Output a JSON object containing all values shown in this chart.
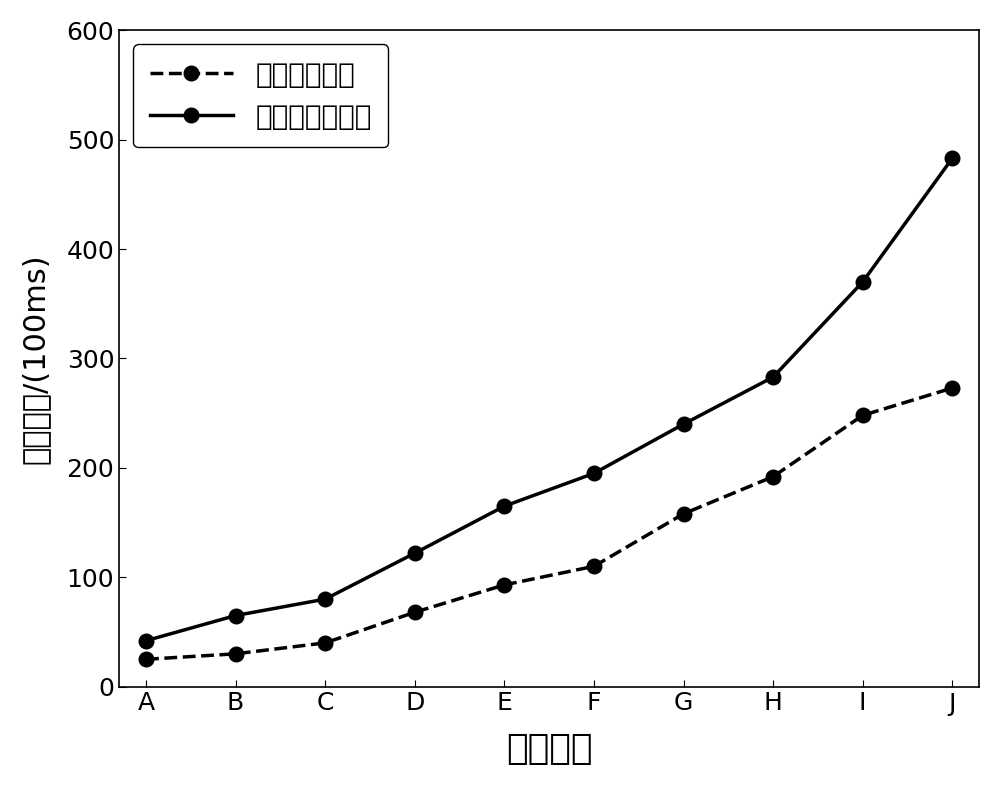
{
  "categories": [
    "A",
    "B",
    "C",
    "D",
    "E",
    "F",
    "G",
    "H",
    "I",
    "J"
  ],
  "heuristic_values": [
    42,
    65,
    80,
    122,
    165,
    195,
    240,
    283,
    370,
    483
  ],
  "general_values": [
    25,
    30,
    40,
    68,
    93,
    110,
    158,
    192,
    248,
    273
  ],
  "ylabel": "运行时间/(100ms)",
  "xlabel": "测试问题",
  "legend_heuristic": "启发式规划方法",
  "legend_general": "一般规划方法",
  "ylim": [
    0,
    600
  ],
  "yticks": [
    0,
    100,
    200,
    300,
    400,
    500,
    600
  ],
  "line_color": "#000000",
  "marker": "o",
  "marker_size": 10,
  "marker_facecolor": "#000000",
  "heuristic_linestyle": "-",
  "general_linestyle": "--",
  "linewidth": 2.5,
  "background_color": "#ffffff",
  "ylabel_fontsize": 22,
  "xlabel_fontsize": 26,
  "tick_fontsize": 18,
  "legend_fontsize": 20
}
